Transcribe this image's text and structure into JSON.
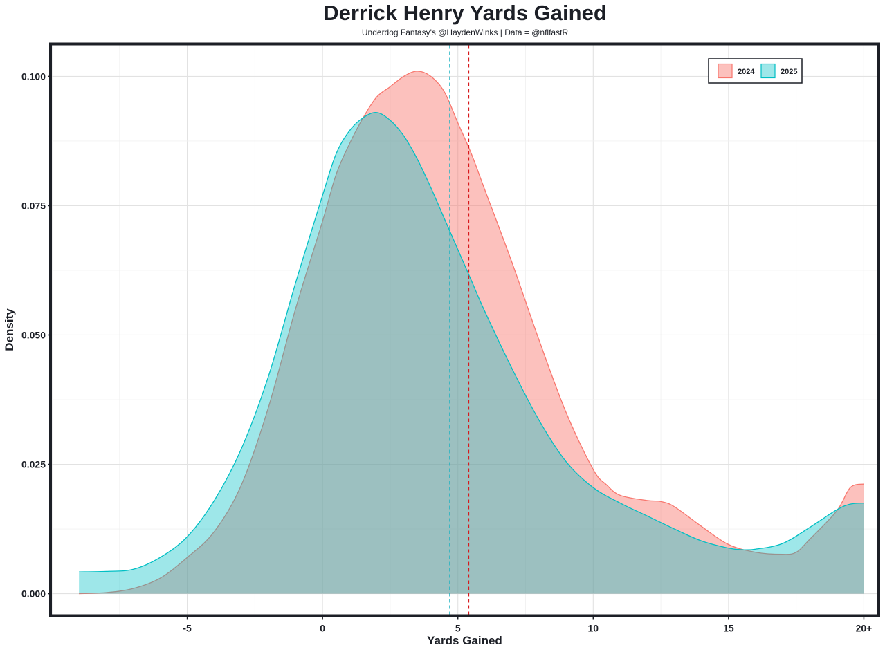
{
  "chart_data": {
    "type": "area",
    "title": "Derrick Henry Yards Gained",
    "subtitle": "Underdog Fantasy's @HaydenWinks | Data = @nflfastR",
    "xlabel": "Yards Gained",
    "ylabel": "Density",
    "xlim": [
      -10,
      20.5
    ],
    "ylim": [
      -0.004,
      0.106
    ],
    "x_ticks": [
      -5,
      0,
      5,
      10,
      15,
      20
    ],
    "x_tick_labels": [
      "-5",
      "0",
      "5",
      "10",
      "15",
      "20+"
    ],
    "y_ticks": [
      0,
      0.025,
      0.05,
      0.075,
      0.1
    ],
    "y_tick_labels": [
      "0.000",
      "0.025",
      "0.050",
      "0.075",
      "0.100"
    ],
    "grid": true,
    "legend_position": "top-right",
    "series": [
      {
        "name": "2024",
        "color": "#f8766d",
        "mean_line": 5.4,
        "mean_line_color": "#d7191c",
        "points": [
          [
            -9,
            0.0
          ],
          [
            -8,
            0.0002
          ],
          [
            -7,
            0.001
          ],
          [
            -6,
            0.003
          ],
          [
            -5,
            0.007
          ],
          [
            -4,
            0.012
          ],
          [
            -3,
            0.021
          ],
          [
            -2,
            0.036
          ],
          [
            -1,
            0.055
          ],
          [
            0,
            0.072
          ],
          [
            0.5,
            0.081
          ],
          [
            1,
            0.087
          ],
          [
            1.5,
            0.092
          ],
          [
            2,
            0.096
          ],
          [
            2.5,
            0.098
          ],
          [
            3,
            0.1
          ],
          [
            3.5,
            0.101
          ],
          [
            4,
            0.1
          ],
          [
            4.5,
            0.097
          ],
          [
            5,
            0.091
          ],
          [
            5.5,
            0.085
          ],
          [
            6,
            0.078
          ],
          [
            7,
            0.064
          ],
          [
            8,
            0.049
          ],
          [
            9,
            0.035
          ],
          [
            10,
            0.024
          ],
          [
            10.5,
            0.021
          ],
          [
            11,
            0.019
          ],
          [
            12,
            0.018
          ],
          [
            12.5,
            0.0178
          ],
          [
            13,
            0.0168
          ],
          [
            14,
            0.013
          ],
          [
            15,
            0.0095
          ],
          [
            16,
            0.008
          ],
          [
            17,
            0.0076
          ],
          [
            17.5,
            0.008
          ],
          [
            18,
            0.0105
          ],
          [
            19,
            0.016
          ],
          [
            19.5,
            0.0205
          ],
          [
            20,
            0.0212
          ]
        ]
      },
      {
        "name": "2025",
        "color": "#00bfc4",
        "mean_line": 4.7,
        "mean_line_color": "#1fb3c2",
        "points": [
          [
            -9,
            0.0042
          ],
          [
            -8,
            0.0043
          ],
          [
            -7,
            0.0047
          ],
          [
            -6,
            0.007
          ],
          [
            -5,
            0.011
          ],
          [
            -4,
            0.018
          ],
          [
            -3,
            0.028
          ],
          [
            -2,
            0.042
          ],
          [
            -1,
            0.06
          ],
          [
            0,
            0.077
          ],
          [
            0.5,
            0.085
          ],
          [
            1,
            0.0895
          ],
          [
            1.5,
            0.092
          ],
          [
            2,
            0.093
          ],
          [
            2.5,
            0.0915
          ],
          [
            3,
            0.0885
          ],
          [
            3.5,
            0.084
          ],
          [
            4,
            0.0785
          ],
          [
            4.5,
            0.0725
          ],
          [
            5,
            0.0665
          ],
          [
            5.5,
            0.0605
          ],
          [
            6,
            0.0545
          ],
          [
            7,
            0.0435
          ],
          [
            8,
            0.0335
          ],
          [
            9,
            0.0255
          ],
          [
            10,
            0.0205
          ],
          [
            11,
            0.0175
          ],
          [
            12,
            0.015
          ],
          [
            13,
            0.0125
          ],
          [
            14,
            0.0102
          ],
          [
            15,
            0.0088
          ],
          [
            15.5,
            0.0085
          ],
          [
            16,
            0.0086
          ],
          [
            17,
            0.0097
          ],
          [
            18,
            0.0128
          ],
          [
            19,
            0.0162
          ],
          [
            19.5,
            0.0173
          ],
          [
            20,
            0.0175
          ]
        ]
      }
    ]
  },
  "colors": {
    "frame": "#1c1f26",
    "grid_major": "#e2e2e2",
    "grid_minor": "#f0f0f0",
    "text": "#1c1f26"
  }
}
